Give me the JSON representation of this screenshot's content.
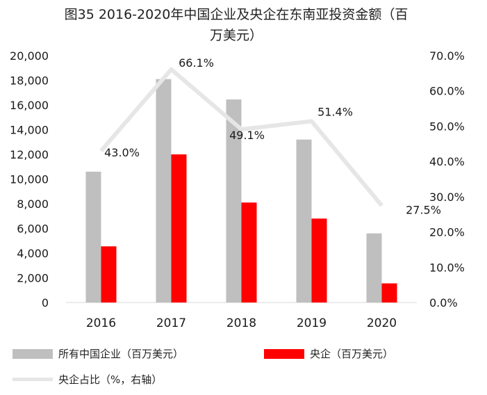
{
  "chart_data": {
    "type": "bar+line",
    "title_line1": "图35 2016-2020年中国企业及央企在东南亚投资金额（百",
    "title_line2": "万美元）",
    "categories": [
      "2016",
      "2017",
      "2018",
      "2019",
      "2020"
    ],
    "series": [
      {
        "name": "所有中国企业（百万美元）",
        "type": "bar",
        "axis": "left",
        "color": "#bfbfbf",
        "values": [
          10600,
          18100,
          16450,
          13200,
          5600
        ]
      },
      {
        "name": "央企（百万美元）",
        "type": "bar",
        "axis": "left",
        "color": "#ff0000",
        "values": [
          4550,
          12000,
          8100,
          6800,
          1550
        ]
      },
      {
        "name": "央企占比（%，右轴）",
        "type": "line",
        "axis": "right",
        "color": "#e6e6e6",
        "values": [
          43.0,
          66.1,
          49.1,
          51.4,
          27.5
        ],
        "labels": [
          "43.0%",
          "66.1%",
          "49.1%",
          "51.4%",
          "27.5%"
        ]
      }
    ],
    "y_left": {
      "min": 0,
      "max": 20000,
      "ticks": [
        "0",
        "2,000",
        "4,000",
        "6,000",
        "8,000",
        "10,000",
        "12,000",
        "14,000",
        "16,000",
        "18,000",
        "20,000"
      ]
    },
    "y_right": {
      "min": 0,
      "max": 70,
      "ticks": [
        "0.0%",
        "10.0%",
        "20.0%",
        "30.0%",
        "40.0%",
        "50.0%",
        "60.0%",
        "70.0%"
      ]
    },
    "grid": false,
    "legend_position": "bottom"
  }
}
